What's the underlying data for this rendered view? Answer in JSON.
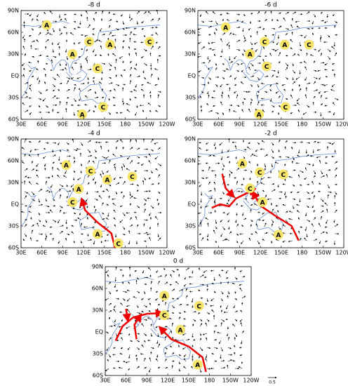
{
  "panels": [
    {
      "title": "-8 d",
      "markers": [
        "A",
        "C",
        "A",
        "C",
        "A",
        "C",
        "A",
        "C"
      ]
    },
    {
      "title": "-6 d",
      "markers": [
        "A",
        "C",
        "A",
        "C",
        "A",
        "C",
        "A",
        "C"
      ]
    },
    {
      "title": "-4 d",
      "markers": [
        "A",
        "C",
        "A",
        "C",
        "A",
        "C",
        "A",
        "C"
      ]
    },
    {
      "title": "-2 d",
      "markers": [
        "A",
        "C",
        "C",
        "C",
        "A",
        "A"
      ]
    },
    {
      "title": "0 d",
      "markers": [
        "A",
        "C",
        "C",
        "A",
        "A"
      ]
    }
  ],
  "lat_labels": [
    "90N",
    "60N",
    "30N",
    "EQ",
    "30S",
    "60S"
  ],
  "lon_labels": [
    "30E",
    "60E",
    "90E",
    "120E",
    "150E",
    "180",
    "150W",
    "120W"
  ],
  "reference_vector": "0.5"
}
